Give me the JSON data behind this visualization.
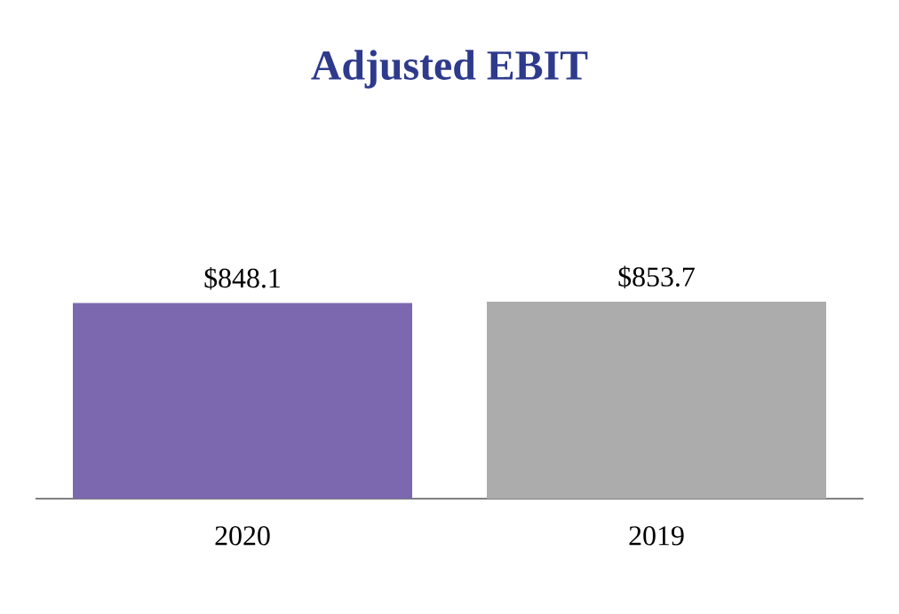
{
  "chart_data": {
    "type": "bar",
    "title": "Adjusted EBIT",
    "categories": [
      "2020",
      "2019"
    ],
    "values": [
      848.1,
      853.7
    ],
    "colors": [
      "#7b68ae",
      "#acacac"
    ],
    "value_labels": [
      "$848.1",
      "$853.7"
    ]
  }
}
